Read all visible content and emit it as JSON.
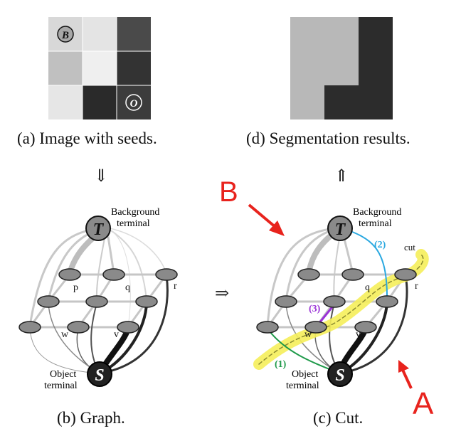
{
  "panel_a": {
    "caption": "(a) Image with seeds.",
    "seed_background": "B",
    "seed_object": "O",
    "grid_colors": [
      [
        "#d8d8d8",
        "#e4e4e4",
        "#4a4a4a"
      ],
      [
        "#c0c0c0",
        "#efefef",
        "#333333"
      ],
      [
        "#e6e6e6",
        "#2a2a2a",
        "#3c3c3c"
      ]
    ]
  },
  "panel_d": {
    "caption": "(d) Segmentation results."
  },
  "panel_b": {
    "caption": "(b) Graph.",
    "terminal_t": "T",
    "terminal_s": "S",
    "background_label_1": "Background",
    "background_label_2": "terminal",
    "object_label_1": "Object",
    "object_label_2": "terminal",
    "node_p": "p",
    "node_q": "q",
    "node_r": "r",
    "node_w": "w",
    "node_v": "v"
  },
  "panel_c": {
    "caption": "(c) Cut.",
    "terminal_t": "T",
    "terminal_s": "S",
    "background_label_1": "Background",
    "background_label_2": "terminal",
    "object_label_1": "Object",
    "object_label_2": "terminal",
    "node_q": "q",
    "node_r": "r",
    "node_w": "w",
    "node_v": "v",
    "cut_label": "cut",
    "mark_1": "(1)",
    "mark_2": "(2)",
    "mark_3": "(3)",
    "annot_a": "A",
    "annot_b": "B"
  },
  "flow": {
    "down": "⇓",
    "up": "⇑",
    "right": "⇒"
  },
  "colors": {
    "annotation_red": "#e8231d",
    "cut_yellow": "#f5ee5a",
    "mark_1": "#1f9a4a",
    "mark_2": "#2aa8e0",
    "mark_3": "#9a32d6"
  }
}
